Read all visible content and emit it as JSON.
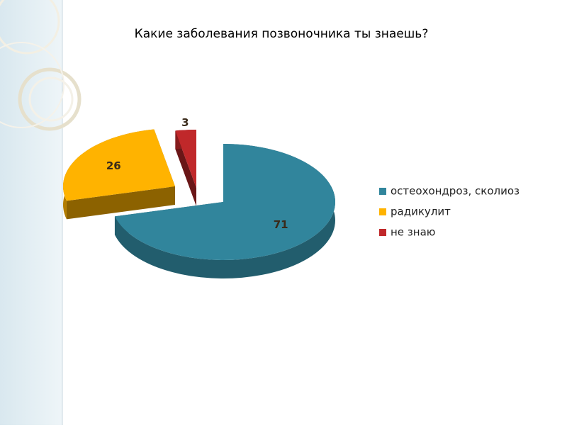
{
  "chart_data": {
    "type": "pie",
    "title": "Какие заболевания позвоночника ты знаешь?",
    "categories": [
      "остеохондроз, сколиоз",
      "радикулит",
      "не знаю"
    ],
    "values": [
      71,
      26,
      3
    ],
    "colors": [
      "#31859c",
      "#ffb300",
      "#c0282a"
    ],
    "legend": "right"
  }
}
